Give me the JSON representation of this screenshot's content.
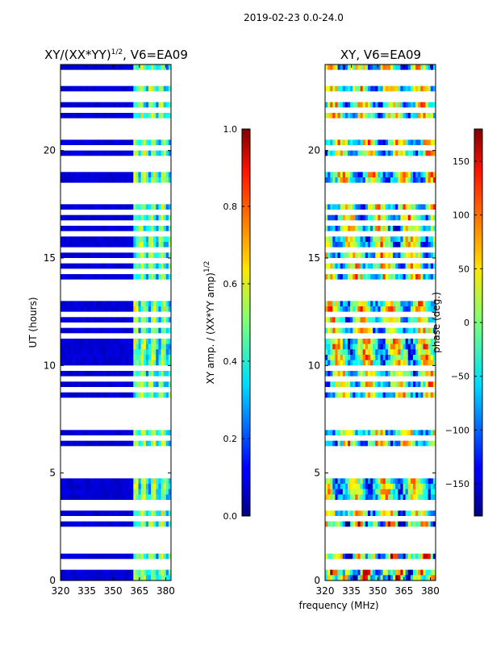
{
  "figure": {
    "suptitle": "2019-02-23 0.0-24.0",
    "shared_xlabel": "frequency (MHz)"
  },
  "chart_data": [
    {
      "type": "heatmap",
      "title_main": "XY/(XX*YY)",
      "title_exp": "1/2",
      "title_suffix": ", V6=EA09",
      "xlabel": "frequency (MHz)",
      "ylabel": "UT (hours)",
      "x_range": [
        320,
        383
      ],
      "y_range": [
        0,
        24
      ],
      "x_ticks": [
        320,
        335,
        350,
        365,
        380
      ],
      "y_ticks": [
        0,
        5,
        10,
        15,
        20
      ],
      "colormap": "jet",
      "colorbar": {
        "label_main": "XY amp. / (XX*YY amp)",
        "label_exp": "1/2",
        "range": [
          0.0,
          1.0
        ],
        "ticks": [
          "0.0",
          "0.2",
          "0.4",
          "0.6",
          "0.8",
          "1.0"
        ],
        "tick_values": [
          0.0,
          0.2,
          0.4,
          0.6,
          0.8,
          1.0
        ]
      },
      "description": "normalized amplitude, mostly ~0.05 below 362 MHz, elevated 0.3-0.6 in bands 362-383 MHz"
    },
    {
      "type": "heatmap",
      "title_main": "XY, V6=EA09",
      "xlabel": "frequency (MHz)",
      "ylabel": "",
      "x_range": [
        320,
        383
      ],
      "y_range": [
        0,
        24
      ],
      "x_ticks": [
        320,
        335,
        350,
        365,
        380
      ],
      "y_ticks": [
        0,
        5,
        10,
        15,
        20
      ],
      "colormap": "jet",
      "colorbar": {
        "label_main": "phase (deg.)",
        "range": [
          -180,
          180
        ],
        "ticks": [
          "150",
          "100",
          "50",
          "0",
          "−50",
          "−100",
          "−150"
        ],
        "tick_values": [
          150,
          100,
          50,
          0,
          -50,
          -100,
          -150
        ]
      },
      "description": "XY phase, broadly distributed across full range"
    }
  ],
  "flagged_hours": [
    0.55,
    0.95,
    1.3,
    1.75,
    2.1,
    2.45,
    2.8,
    3.3,
    3.55,
    4.95,
    5.25,
    5.7,
    6.0,
    6.6,
    7.05,
    7.45,
    7.75,
    8.1,
    8.4,
    8.85,
    9.3,
    9.9,
    11.3,
    11.85,
    12.35,
    13.1,
    13.5,
    13.9,
    14.45,
    14.9,
    15.45,
    16.05,
    16.6,
    17.1,
    17.6,
    18.0,
    18.4,
    19.1,
    19.5,
    20.1,
    20.6,
    21.0,
    21.35,
    21.8,
    22.3,
    22.7,
    23.1,
    23.5
  ]
}
